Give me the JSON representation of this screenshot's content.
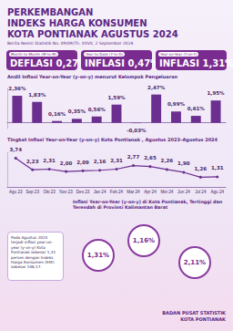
{
  "header": {
    "title": [
      "PERKEMBANGAN",
      "INDEKS HARGA KONSUMEN",
      "KOTA PONTIANAK AGUSTUS 2024"
    ],
    "subtitle": "Berita Resmi Statistik No. 09/09/Th. XXVII, 2 September 2024"
  },
  "indicators": [
    {
      "label": "Month-to-Month (M-to-M)",
      "text": "DEFLASI 0,27%"
    },
    {
      "label": "Year-to-Date (Y-to-D)",
      "text": "INFLASI 0,47%"
    },
    {
      "label": "Year-on-Year (Y-on-Y)",
      "text": "INFLASI 1,31%"
    }
  ],
  "chart_data": [
    {
      "type": "bar",
      "title": "Andil Inflasi Year-on-Year (y-on-y) menurut Kelompok Pengeluaran",
      "categories": [
        null,
        null,
        null,
        null,
        null,
        null,
        null,
        null,
        null,
        null,
        null
      ],
      "values": [
        2.36,
        1.83,
        0.16,
        0.35,
        0.56,
        1.59,
        -0.03,
        2.47,
        0.99,
        0.61,
        1.95
      ],
      "value_labels": [
        "2,36%",
        "1,83%",
        "0,16%",
        "0,35%",
        "0,56%",
        "1,59%",
        "-0,03%",
        "2,47%",
        "0,99%",
        "0,61%",
        "1,95%"
      ],
      "color": "#6b2f8f",
      "ylim": [
        -0.5,
        3
      ],
      "yticks": [
        0
      ],
      "grid": false,
      "data_labels": true,
      "tick_labels": false
    },
    {
      "type": "line",
      "title": "Tingkat Inflasi Year-on-Year (y-on-y) Kota Pontianak , Agustus 2023–Agustus 2024",
      "categories": [
        "Agu 23",
        "Sep 23",
        "Okt 23",
        "Nov 23",
        "Des 23",
        "Jan 24",
        "Feb 24",
        "Mar 24",
        "Apr 24",
        "Mei 24",
        "Jun 24",
        "Jul 24",
        "Agu 24"
      ],
      "values": [
        3.74,
        2.23,
        2.31,
        2.0,
        2.09,
        2.16,
        2.31,
        2.77,
        2.65,
        2.26,
        1.9,
        1.26,
        1.31
      ],
      "value_labels": [
        "3,74",
        "2,23",
        "2,31",
        "2,00",
        "2,09",
        "2,16",
        "2,31",
        "2,77",
        "2,65",
        "2,26",
        "1,90",
        "1,26",
        "1,31"
      ],
      "color": "#6b2f8f",
      "marker": "circle",
      "ylim": [
        0,
        4.5
      ],
      "yticks": [
        0
      ],
      "grid": false,
      "data_labels": true,
      "tick_labels": "x"
    }
  ],
  "regional": {
    "title": "Inflasi Year-on-Year (y-on-y) di Kota Pontianak, Tertinggi dan Terendah di Provinsi Kalimantan Barat",
    "note": "Pada Agustus 2024 terjadi inflasi year-on-year (y-on-y) Kota Pontianak sebesar 1,31 persen dengan Indeks Harga Konsumen (IHK) sebesar 106,17.",
    "values": [
      "1,31%",
      "1,16%",
      "2,11%"
    ]
  },
  "footer": [
    "BADAN PUSAT STATISTIK",
    "KOTA PONTIANAK"
  ]
}
